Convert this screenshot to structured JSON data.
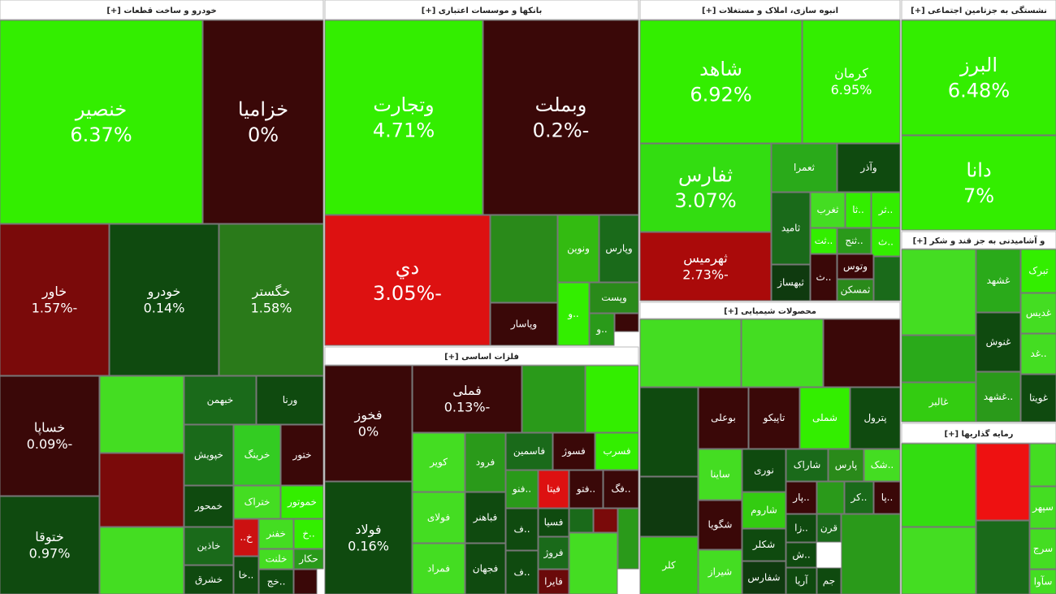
{
  "sectors": [
    {
      "title": "خودرو و ساخت قطعات [+]",
      "tiles": [
        {
          "symbol": "خنصير",
          "change": "6.37%"
        },
        {
          "symbol": "خزامیا",
          "change": "0%"
        },
        {
          "symbol": "خاور",
          "change": "-1.57%"
        },
        {
          "symbol": "خودرو",
          "change": "0.14%"
        },
        {
          "symbol": "خگستر",
          "change": "1.58%"
        },
        {
          "symbol": "خساپا",
          "change": "-0.09%"
        },
        {
          "symbol": "ختوقا",
          "change": "0.97%"
        },
        {
          "symbol": "خبهمن"
        },
        {
          "symbol": "ورنا"
        },
        {
          "symbol": "خپویش"
        },
        {
          "symbol": "خرینگ"
        },
        {
          "symbol": "ختور"
        },
        {
          "symbol": "خمحور"
        },
        {
          "symbol": "ختراک"
        },
        {
          "symbol": "خموتور"
        },
        {
          "symbol": "خاذین"
        },
        {
          "symbol": "خشرق"
        },
        {
          "symbol": "خ.."
        },
        {
          "symbol": "خفنر"
        },
        {
          "symbol": "..خ"
        },
        {
          "symbol": "..خا"
        },
        {
          "symbol": "خلنت"
        },
        {
          "symbol": "حکار"
        },
        {
          "symbol": "..خج"
        }
      ]
    },
    {
      "title": "بانکها و موسسات اعتباری [+]",
      "tiles": [
        {
          "symbol": "وتجارت",
          "change": "4.71%"
        },
        {
          "symbol": "وبملت",
          "change": "-0.2%"
        },
        {
          "symbol": "دي",
          "change": "-3.05%"
        },
        {
          "symbol": "ونوین"
        },
        {
          "symbol": "وپارس"
        },
        {
          "symbol": "..و"
        },
        {
          "symbol": "وپست"
        },
        {
          "symbol": "وپاسار"
        },
        {
          "symbol": "..و"
        }
      ]
    },
    {
      "title": "فلزات اساسی [+]",
      "tiles": [
        {
          "symbol": "فخوز",
          "change": "0%"
        },
        {
          "symbol": "فولاد",
          "change": "0.16%"
        },
        {
          "symbol": "فملی",
          "change": "-0.13%"
        },
        {
          "symbol": "کویر"
        },
        {
          "symbol": "فرود"
        },
        {
          "symbol": "فاسمین"
        },
        {
          "symbol": "فسوژ"
        },
        {
          "symbol": "فسرب"
        },
        {
          "symbol": "فولای"
        },
        {
          "symbol": "فباهنر"
        },
        {
          "symbol": "..فنو"
        },
        {
          "symbol": "فیتا"
        },
        {
          "symbol": "..فتو"
        },
        {
          "symbol": "..فگ"
        },
        {
          "symbol": "فمراد"
        },
        {
          "symbol": "فجهان"
        },
        {
          "symbol": "..ف"
        },
        {
          "symbol": "..ف"
        },
        {
          "symbol": "فسیا"
        },
        {
          "symbol": "فروژ"
        },
        {
          "symbol": "فایرا"
        }
      ]
    },
    {
      "title": "انبوه سازی، املاک و مستغلات [+]",
      "tiles": [
        {
          "symbol": "شاهد",
          "change": "6.92%"
        },
        {
          "symbol": "کرمان",
          "change": "6.95%"
        },
        {
          "symbol": "ثفارس",
          "change": "3.07%"
        },
        {
          "symbol": "ثهرمیس",
          "change": "-2.73%"
        },
        {
          "symbol": "ثعمرا"
        },
        {
          "symbol": "وآذر"
        },
        {
          "symbol": "ثامید"
        },
        {
          "symbol": "ثغرب"
        },
        {
          "symbol": "..ثا"
        },
        {
          "symbol": "..ثر"
        },
        {
          "symbol": "..ثت"
        },
        {
          "symbol": "..ثنج"
        },
        {
          "symbol": "..ث"
        },
        {
          "symbol": "وتوس"
        },
        {
          "symbol": "ثبهساز"
        },
        {
          "symbol": "..ث"
        },
        {
          "symbol": "ثمسکن"
        }
      ]
    },
    {
      "title": "محصولات شیمیایی [+]",
      "tiles": [
        {
          "symbol": "بوعلی"
        },
        {
          "symbol": "تاپیکو"
        },
        {
          "symbol": "شملی"
        },
        {
          "symbol": "پترول"
        },
        {
          "symbol": "کلر"
        },
        {
          "symbol": "ساینا"
        },
        {
          "symbol": "نوری"
        },
        {
          "symbol": "شاراک"
        },
        {
          "symbol": "پارس"
        },
        {
          "symbol": "..شک"
        },
        {
          "symbol": "شگویا"
        },
        {
          "symbol": "شیراز"
        },
        {
          "symbol": "شاروم"
        },
        {
          "symbol": "شکلر"
        },
        {
          "symbol": "شفارس"
        },
        {
          "symbol": "..پار"
        },
        {
          "symbol": "..زا"
        },
        {
          "symbol": "..کر"
        },
        {
          "symbol": "..پا"
        },
        {
          "symbol": "..ش"
        },
        {
          "symbol": "آریا"
        },
        {
          "symbol": "جم"
        },
        {
          "symbol": "قرن"
        }
      ]
    },
    {
      "title": "نشستگی به جزتامین اجتماعی [+]",
      "tiles": [
        {
          "symbol": "البرز",
          "change": "6.48%"
        },
        {
          "symbol": "دانا",
          "change": "7%"
        }
      ]
    },
    {
      "title": "و آشامیدنی به جز قند و شکر [+]",
      "tiles": [
        {
          "symbol": "غشهد"
        },
        {
          "symbol": "تبرک"
        },
        {
          "symbol": "غدیس"
        },
        {
          "symbol": "غنوش"
        },
        {
          "symbol": "..غد"
        },
        {
          "symbol": "..غشهد"
        },
        {
          "symbol": "غویتا"
        },
        {
          "symbol": "غالبر"
        }
      ]
    },
    {
      "title": "رمایه گذاریها [+]",
      "tiles": [
        {
          "symbol": "سپهر"
        },
        {
          "symbol": "سرج"
        },
        {
          "symbol": "سآوا"
        }
      ]
    }
  ]
}
